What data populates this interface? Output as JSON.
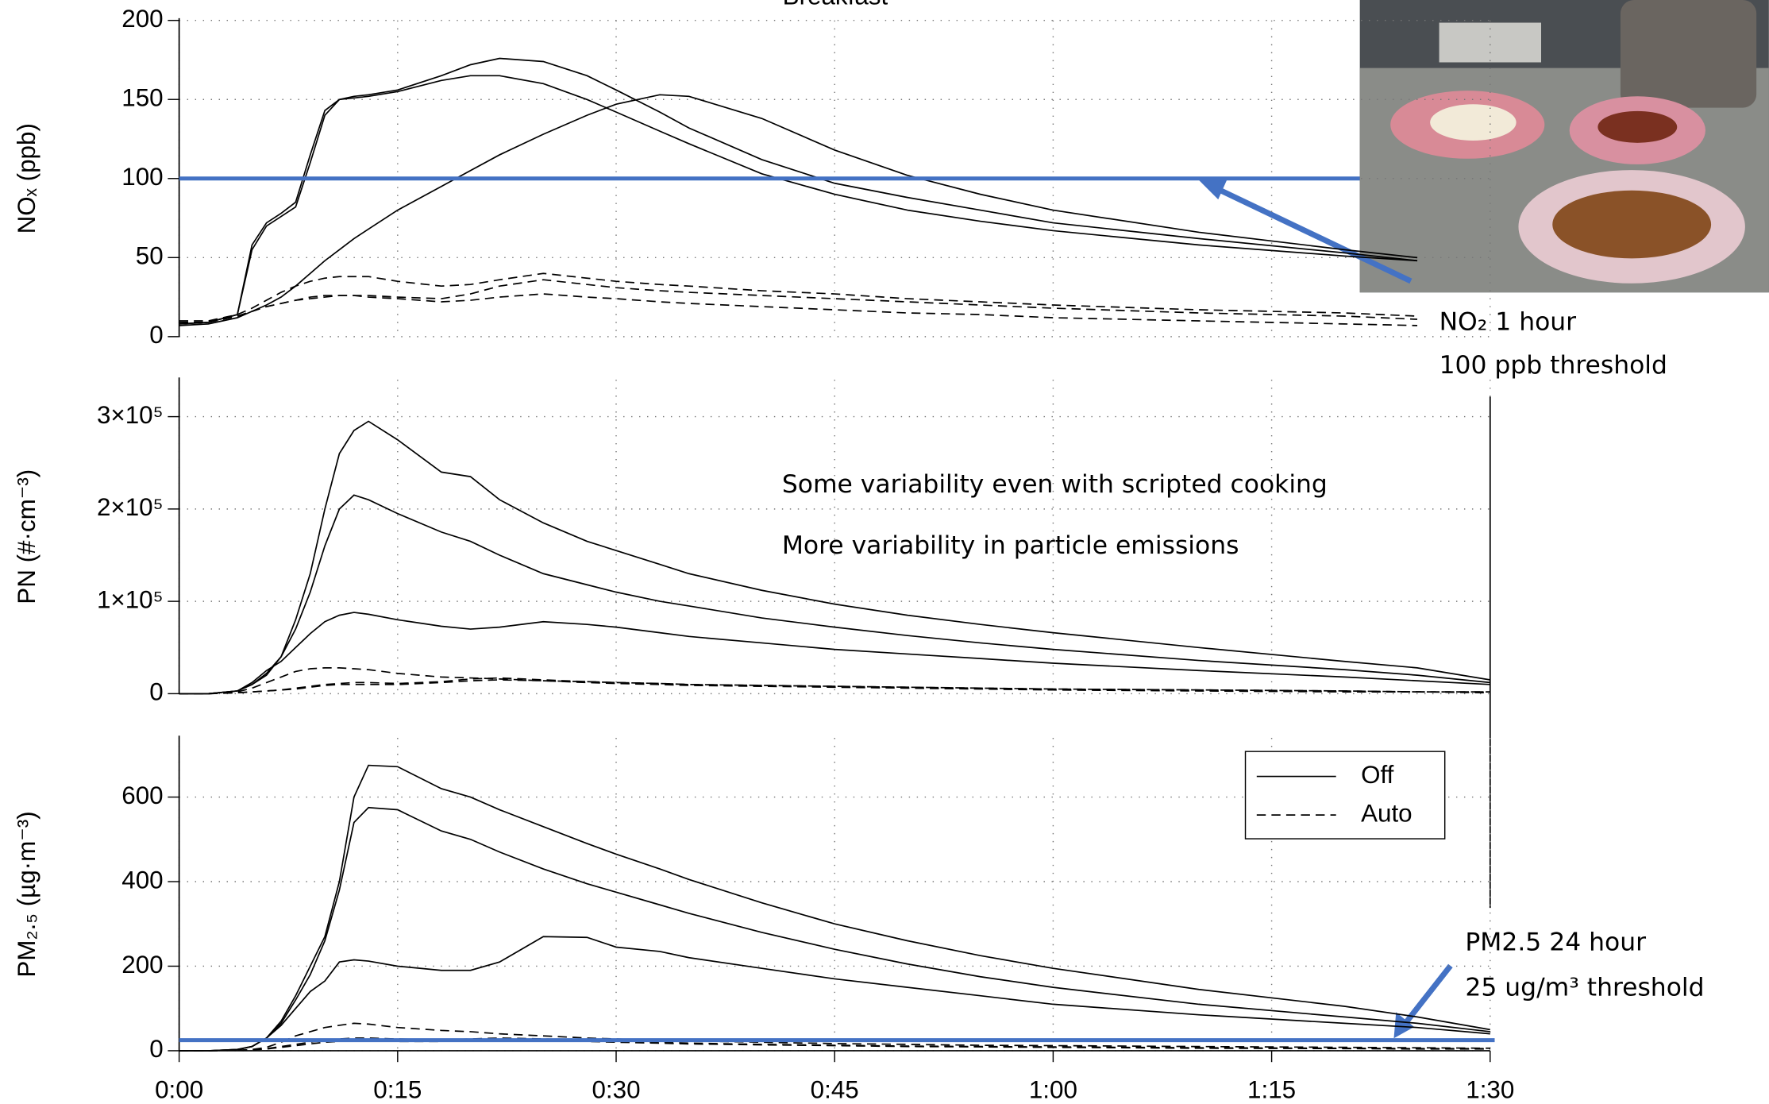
{
  "chart_data": [
    {
      "type": "line",
      "title": "Breakfast",
      "ylabel": "NOₓ (ppb)",
      "x": [
        0,
        2,
        4,
        5,
        6,
        7,
        8,
        9,
        10,
        11,
        12,
        13,
        15,
        18,
        20,
        22,
        25,
        28,
        30,
        33,
        35,
        40,
        45,
        50,
        55,
        60,
        70,
        80,
        85
      ],
      "xlim": [
        0,
        90
      ],
      "ylim": [
        0,
        200
      ],
      "yticks": [
        0,
        50,
        100,
        150,
        200
      ],
      "grid": true,
      "series": [
        {
          "color": "#000000",
          "dash": false,
          "values": [
            8,
            9,
            14,
            55,
            70,
            76,
            82,
            110,
            140,
            150,
            152,
            153,
            156,
            165,
            172,
            176,
            174,
            165,
            156,
            142,
            132,
            112,
            97,
            88,
            80,
            72,
            62,
            53,
            48
          ]
        },
        {
          "color": "#000000",
          "dash": false,
          "values": [
            8,
            9,
            14,
            58,
            72,
            78,
            85,
            115,
            143,
            150,
            151,
            152,
            155,
            162,
            165,
            165,
            160,
            150,
            142,
            130,
            122,
            103,
            90,
            80,
            73,
            67,
            58,
            51,
            48
          ]
        },
        {
          "color": "#000000",
          "dash": false,
          "values": [
            7,
            8,
            12,
            16,
            20,
            25,
            32,
            40,
            48,
            55,
            62,
            68,
            80,
            95,
            105,
            115,
            128,
            140,
            147,
            153,
            152,
            138,
            118,
            102,
            90,
            80,
            66,
            55,
            50
          ]
        },
        {
          "color": "#000000",
          "dash": true,
          "values": [
            10,
            10,
            14,
            18,
            23,
            28,
            32,
            35,
            37,
            38,
            38,
            38,
            35,
            32,
            33,
            36,
            40,
            37,
            35,
            33,
            32,
            29,
            27,
            24,
            22,
            20,
            17,
            15,
            13
          ]
        },
        {
          "color": "#000000",
          "dash": true,
          "values": [
            9,
            9,
            13,
            16,
            19,
            21,
            23,
            25,
            26,
            26,
            26,
            26,
            25,
            24,
            27,
            32,
            36,
            33,
            31,
            29,
            28,
            26,
            24,
            22,
            20,
            18,
            15,
            13,
            11
          ]
        },
        {
          "color": "#000000",
          "dash": true,
          "values": [
            9,
            9,
            13,
            16,
            19,
            21,
            23,
            24,
            25,
            26,
            26,
            25,
            24,
            22,
            23,
            25,
            27,
            25,
            24,
            22,
            21,
            19,
            17,
            15,
            14,
            12,
            10,
            8,
            7
          ]
        }
      ],
      "threshold": {
        "value": 100,
        "color": "#4472c4"
      },
      "annotations": [
        "NO₂ 1 hour",
        "100 ppb threshold"
      ]
    },
    {
      "type": "line",
      "ylabel": "PN (#·cm⁻³)",
      "x": [
        0,
        2,
        4,
        5,
        6,
        7,
        8,
        9,
        10,
        11,
        12,
        13,
        15,
        18,
        20,
        22,
        25,
        28,
        30,
        33,
        35,
        40,
        45,
        50,
        55,
        60,
        70,
        80,
        85,
        90
      ],
      "xlim": [
        0,
        90
      ],
      "ylim": [
        0,
        340000
      ],
      "yticks": [
        0,
        {
          "value": 100000,
          "label": "1×10⁵"
        },
        {
          "value": 200000,
          "label": "2×10⁵"
        },
        {
          "value": 300000,
          "label": "3×10⁵"
        }
      ],
      "grid": true,
      "series": [
        {
          "color": "#000000",
          "dash": false,
          "values": [
            0,
            0,
            3000,
            10000,
            20000,
            40000,
            80000,
            130000,
            200000,
            260000,
            285000,
            295000,
            275000,
            240000,
            235000,
            210000,
            185000,
            165000,
            155000,
            140000,
            130000,
            112000,
            97000,
            85000,
            75000,
            66000,
            50000,
            35000,
            28000,
            15000
          ]
        },
        {
          "color": "#000000",
          "dash": false,
          "values": [
            0,
            0,
            3000,
            10000,
            22000,
            40000,
            70000,
            110000,
            160000,
            200000,
            215000,
            210000,
            195000,
            175000,
            165000,
            150000,
            130000,
            118000,
            110000,
            100000,
            95000,
            82000,
            72000,
            63000,
            55000,
            48000,
            36000,
            26000,
            20000,
            12000
          ]
        },
        {
          "color": "#000000",
          "dash": false,
          "values": [
            0,
            0,
            3000,
            12000,
            25000,
            35000,
            50000,
            65000,
            78000,
            85000,
            88000,
            86000,
            80000,
            73000,
            70000,
            72000,
            78000,
            75000,
            72000,
            66000,
            62000,
            55000,
            48000,
            43000,
            38000,
            33000,
            25000,
            18000,
            14000,
            10000
          ]
        },
        {
          "color": "#000000",
          "dash": true,
          "values": [
            0,
            0,
            2000,
            6000,
            12000,
            18000,
            24000,
            27000,
            28000,
            28000,
            27000,
            26000,
            22000,
            18000,
            17000,
            16000,
            14000,
            13000,
            12000,
            11000,
            10000,
            9000,
            8000,
            7000,
            6000,
            5000,
            4000,
            3000,
            2000,
            2000
          ]
        },
        {
          "color": "#000000",
          "dash": true,
          "values": [
            0,
            0,
            1000,
            2000,
            3000,
            4000,
            6000,
            8000,
            10000,
            11000,
            12000,
            12000,
            11000,
            13000,
            16000,
            17000,
            15000,
            13000,
            12000,
            11000,
            10000,
            9000,
            8000,
            7000,
            6000,
            5000,
            4000,
            3000,
            2000,
            2000
          ]
        },
        {
          "color": "#000000",
          "dash": true,
          "values": [
            0,
            0,
            1000,
            2000,
            3000,
            4000,
            5000,
            7000,
            9000,
            10000,
            10000,
            10000,
            10000,
            12000,
            14000,
            15000,
            14000,
            12000,
            11000,
            10000,
            9000,
            8000,
            7000,
            6000,
            5000,
            4000,
            3000,
            2000,
            2000,
            1000
          ]
        }
      ],
      "annotations": [
        "Some variability even with scripted cooking",
        "More variability in particle emissions"
      ]
    },
    {
      "type": "line",
      "ylabel": "PM₂.₅ (µg·m⁻³)",
      "x": [
        0,
        2,
        4,
        5,
        6,
        7,
        8,
        9,
        10,
        11,
        12,
        13,
        15,
        18,
        20,
        22,
        25,
        28,
        30,
        33,
        35,
        40,
        45,
        50,
        55,
        60,
        70,
        80,
        85,
        90
      ],
      "xlim": [
        0,
        90
      ],
      "xticks": [
        {
          "value": 0,
          "label": "0:00"
        },
        {
          "value": 15,
          "label": "0:15"
        },
        {
          "value": 30,
          "label": "0:30"
        },
        {
          "value": 45,
          "label": "0:45"
        },
        {
          "value": 60,
          "label": "1:00"
        },
        {
          "value": 75,
          "label": "1:15"
        },
        {
          "value": 90,
          "label": "1:30"
        }
      ],
      "ylim": [
        0,
        740
      ],
      "yticks": [
        0,
        200,
        400,
        600
      ],
      "grid": true,
      "series": [
        {
          "color": "#000000",
          "dash": false,
          "values": [
            0,
            0,
            3,
            10,
            30,
            70,
            130,
            200,
            270,
            400,
            600,
            675,
            672,
            620,
            600,
            570,
            530,
            490,
            465,
            430,
            405,
            350,
            300,
            260,
            225,
            195,
            145,
            105,
            80,
            50
          ]
        },
        {
          "color": "#000000",
          "dash": false,
          "values": [
            0,
            0,
            3,
            10,
            30,
            65,
            120,
            180,
            260,
            380,
            540,
            575,
            570,
            520,
            500,
            470,
            430,
            395,
            375,
            345,
            325,
            280,
            240,
            205,
            175,
            150,
            110,
            80,
            65,
            45
          ]
        },
        {
          "color": "#000000",
          "dash": false,
          "values": [
            0,
            0,
            3,
            10,
            30,
            60,
            100,
            140,
            165,
            210,
            215,
            212,
            200,
            190,
            190,
            210,
            270,
            268,
            245,
            235,
            220,
            195,
            170,
            150,
            130,
            110,
            85,
            65,
            55,
            40
          ]
        },
        {
          "color": "#000000",
          "dash": true,
          "values": [
            0,
            0,
            1,
            3,
            8,
            20,
            35,
            45,
            55,
            60,
            65,
            63,
            55,
            48,
            45,
            40,
            35,
            30,
            28,
            25,
            23,
            20,
            17,
            15,
            13,
            12,
            10,
            8,
            7,
            6
          ]
        },
        {
          "color": "#000000",
          "dash": true,
          "values": [
            0,
            0,
            1,
            2,
            5,
            10,
            15,
            20,
            25,
            28,
            30,
            30,
            28,
            26,
            28,
            30,
            28,
            25,
            23,
            20,
            18,
            15,
            13,
            11,
            10,
            9,
            7,
            6,
            5,
            5
          ]
        },
        {
          "color": "#000000",
          "dash": true,
          "values": [
            0,
            0,
            1,
            2,
            4,
            8,
            12,
            16,
            20,
            22,
            24,
            24,
            22,
            22,
            24,
            26,
            25,
            22,
            20,
            18,
            16,
            14,
            12,
            10,
            9,
            8,
            6,
            5,
            4,
            4
          ]
        }
      ],
      "legend": [
        {
          "name": "Off",
          "dash": false
        },
        {
          "name": "Auto",
          "dash": true
        }
      ],
      "threshold": {
        "value": 25,
        "color": "#4472c4"
      },
      "annotations": [
        "PM2.5 24 hour",
        "25 ug/m³ threshold"
      ]
    }
  ]
}
